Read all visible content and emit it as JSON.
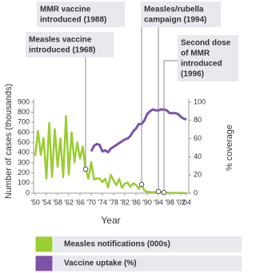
{
  "chart_data": {
    "type": "line",
    "xlabel": "Year",
    "ylabel": "Number of cases (thousands)",
    "y2label": "% coverage",
    "x": [
      1950,
      1951,
      1952,
      1953,
      1954,
      1955,
      1956,
      1957,
      1958,
      1959,
      1960,
      1961,
      1962,
      1963,
      1964,
      1965,
      1966,
      1967,
      1968,
      1969,
      1970,
      1971,
      1972,
      1973,
      1974,
      1975,
      1976,
      1977,
      1978,
      1979,
      1980,
      1981,
      1982,
      1983,
      1984,
      1985,
      1986,
      1987,
      1988,
      1989,
      1990,
      1991,
      1992,
      1993,
      1994,
      1995,
      1996,
      1997,
      1998,
      1999,
      2000,
      2001,
      2002,
      2003,
      2004
    ],
    "series": [
      {
        "name": "Measles notifications (000s)",
        "color": "#9acd32",
        "values": [
          368,
          616,
          380,
          546,
          146,
          694,
          161,
          633,
          260,
          540,
          159,
          763,
          184,
          601,
          306,
          502,
          343,
          460,
          237,
          143,
          307,
          135,
          145,
          146,
          110,
          143,
          56,
          182,
          125,
          78,
          140,
          53,
          95,
          104,
          63,
          98,
          83,
          43,
          86,
          27,
          14,
          10,
          10,
          10,
          17,
          8,
          6,
          4,
          3,
          2,
          2,
          2,
          3,
          2,
          2
        ]
      },
      {
        "name": "Vaccine uptake (%)",
        "color": "#7d52a8",
        "axis": "y2",
        "values": [
          null,
          null,
          null,
          null,
          null,
          null,
          null,
          null,
          null,
          null,
          null,
          null,
          null,
          null,
          null,
          null,
          null,
          null,
          null,
          null,
          46,
          52,
          54,
          53,
          46,
          47,
          45,
          49,
          51,
          53,
          55,
          57,
          59,
          60,
          63,
          68,
          71,
          76,
          76,
          80,
          87,
          90,
          92,
          91,
          91,
          92,
          92,
          91,
          88,
          88,
          88,
          87,
          84,
          82,
          81
        ]
      }
    ],
    "xlim": [
      1950,
      2004
    ],
    "xticks": [
      {
        "value": 1950,
        "label": "'50"
      },
      {
        "value": 1954,
        "label": "'54"
      },
      {
        "value": 1958,
        "label": "'58"
      },
      {
        "value": 1962,
        "label": "'62"
      },
      {
        "value": 1966,
        "label": "'66"
      },
      {
        "value": 1970,
        "label": "'70"
      },
      {
        "value": 1974,
        "label": "'74"
      },
      {
        "value": 1978,
        "label": "'78"
      },
      {
        "value": 1982,
        "label": "'82"
      },
      {
        "value": 1986,
        "label": "'86"
      },
      {
        "value": 1990,
        "label": "'90"
      },
      {
        "value": 1994,
        "label": "'94"
      },
      {
        "value": 1998,
        "label": "'98"
      },
      {
        "value": 2002,
        "label": "'02"
      },
      {
        "value": 2004,
        "label": "'04"
      }
    ],
    "ylim": [
      0,
      900
    ],
    "yticks": [
      0,
      100,
      200,
      300,
      400,
      500,
      600,
      700,
      800,
      900
    ],
    "y2lim": [
      0,
      100
    ],
    "y2ticks": [
      0,
      20,
      40,
      60,
      80,
      100
    ],
    "annotations": [
      {
        "lines": [
          "Measles vaccine",
          "introduced (1968)"
        ],
        "x": 1968
      },
      {
        "lines": [
          "MMR vaccine",
          "introduced (1988)"
        ],
        "x": 1988
      },
      {
        "lines": [
          "Measles/rubella",
          "campaign (1994)"
        ],
        "x": 1994
      },
      {
        "lines": [
          "Second dose",
          "of MMR",
          "introduced",
          "(1996)"
        ],
        "x": 1996
      }
    ]
  }
}
